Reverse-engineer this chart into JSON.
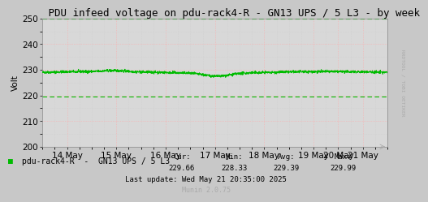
{
  "title": " PDU infeed voltage on pdu-rack4-R - GN13 UPS / 5 L3 - by week",
  "ylabel": "Volt",
  "ylim": [
    200,
    250
  ],
  "yticks": [
    200,
    210,
    220,
    230,
    240,
    250
  ],
  "xlim": [
    0,
    672
  ],
  "xtick_labels": [
    "14 May",
    "15 May",
    "16 May",
    "17 May",
    "18 May",
    "19 May",
    "20 May",
    "21 May"
  ],
  "xtick_positions": [
    48,
    144,
    240,
    336,
    432,
    528,
    576,
    624
  ],
  "line_color": "#00bb00",
  "dashed_line_y": 219.5,
  "dashed_line_color": "#00bb00",
  "upper_dashed_y": 250.0,
  "upper_dashed_color": "#00bb00",
  "bg_color": "#c8c8c8",
  "plot_bg_color": "#d8d8d8",
  "grid_color_red": "#ffaaaa",
  "grid_color_light": "#cccccc",
  "base_voltage": 229.0,
  "legend_label": "pdu-rack4-R  -  GN13 UPS / 5 L3",
  "legend_color": "#00bb00",
  "cur": "229.66",
  "min": "228.33",
  "avg": "229.39",
  "max": "229.99",
  "last_update": "Last update: Wed May 21 20:35:00 2025",
  "munin_version": "Munin 2.0.75",
  "rrdtool_label": "RRDTOOL / TOBI OETIKER",
  "title_fontsize": 9,
  "axis_fontsize": 7.5,
  "legend_fontsize": 7,
  "footer_fontsize": 6.5
}
